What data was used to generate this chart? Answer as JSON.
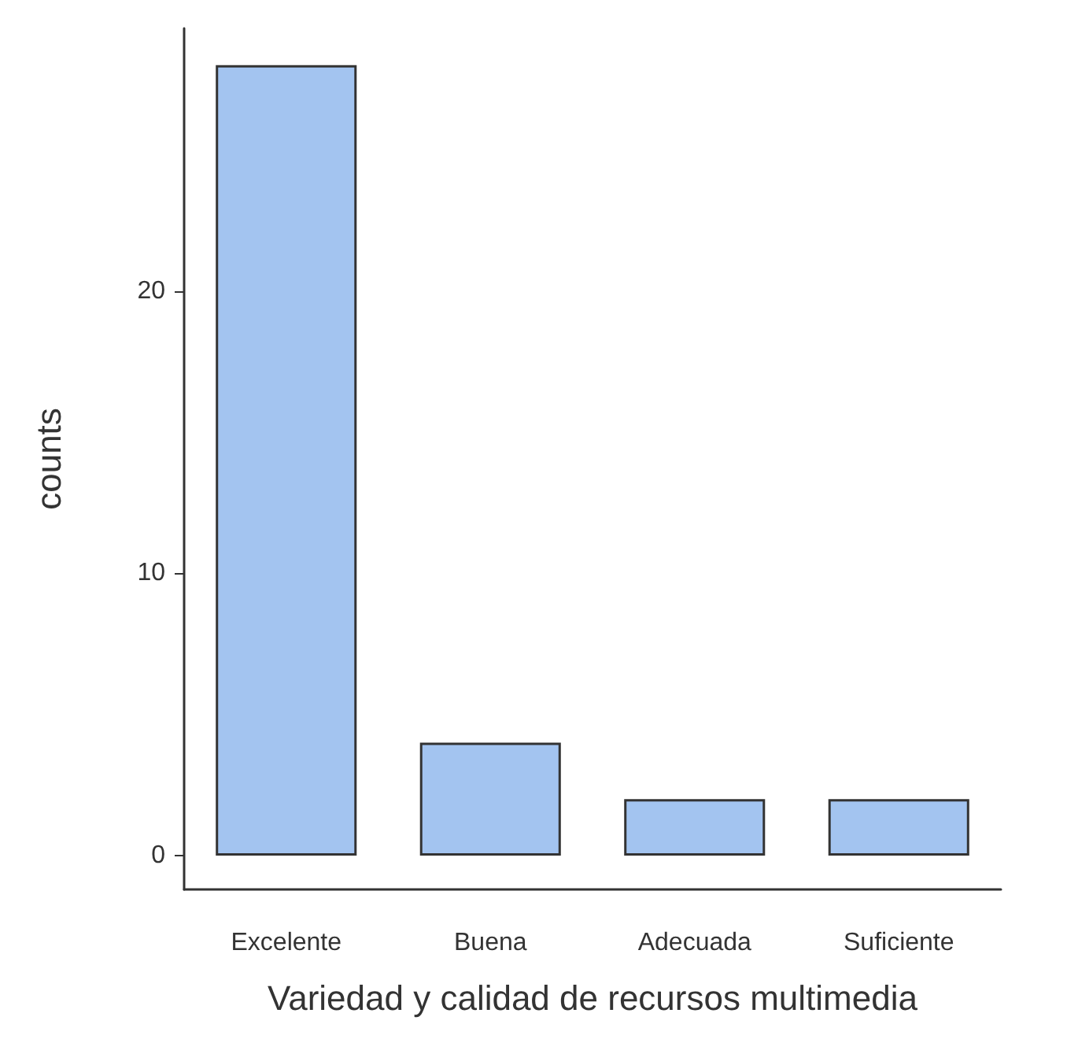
{
  "chart_data": {
    "type": "bar",
    "xlabel": "Variedad y calidad de recursos multimedia",
    "ylabel": "counts",
    "categories": [
      "Excelente",
      "Buena",
      "Adecuada",
      "Suficiente"
    ],
    "values": [
      28,
      4,
      2,
      2
    ],
    "color": "#a3c4f0",
    "ylim": [
      -1.2,
      29.3
    ],
    "yticks": [
      0,
      10,
      20
    ]
  }
}
